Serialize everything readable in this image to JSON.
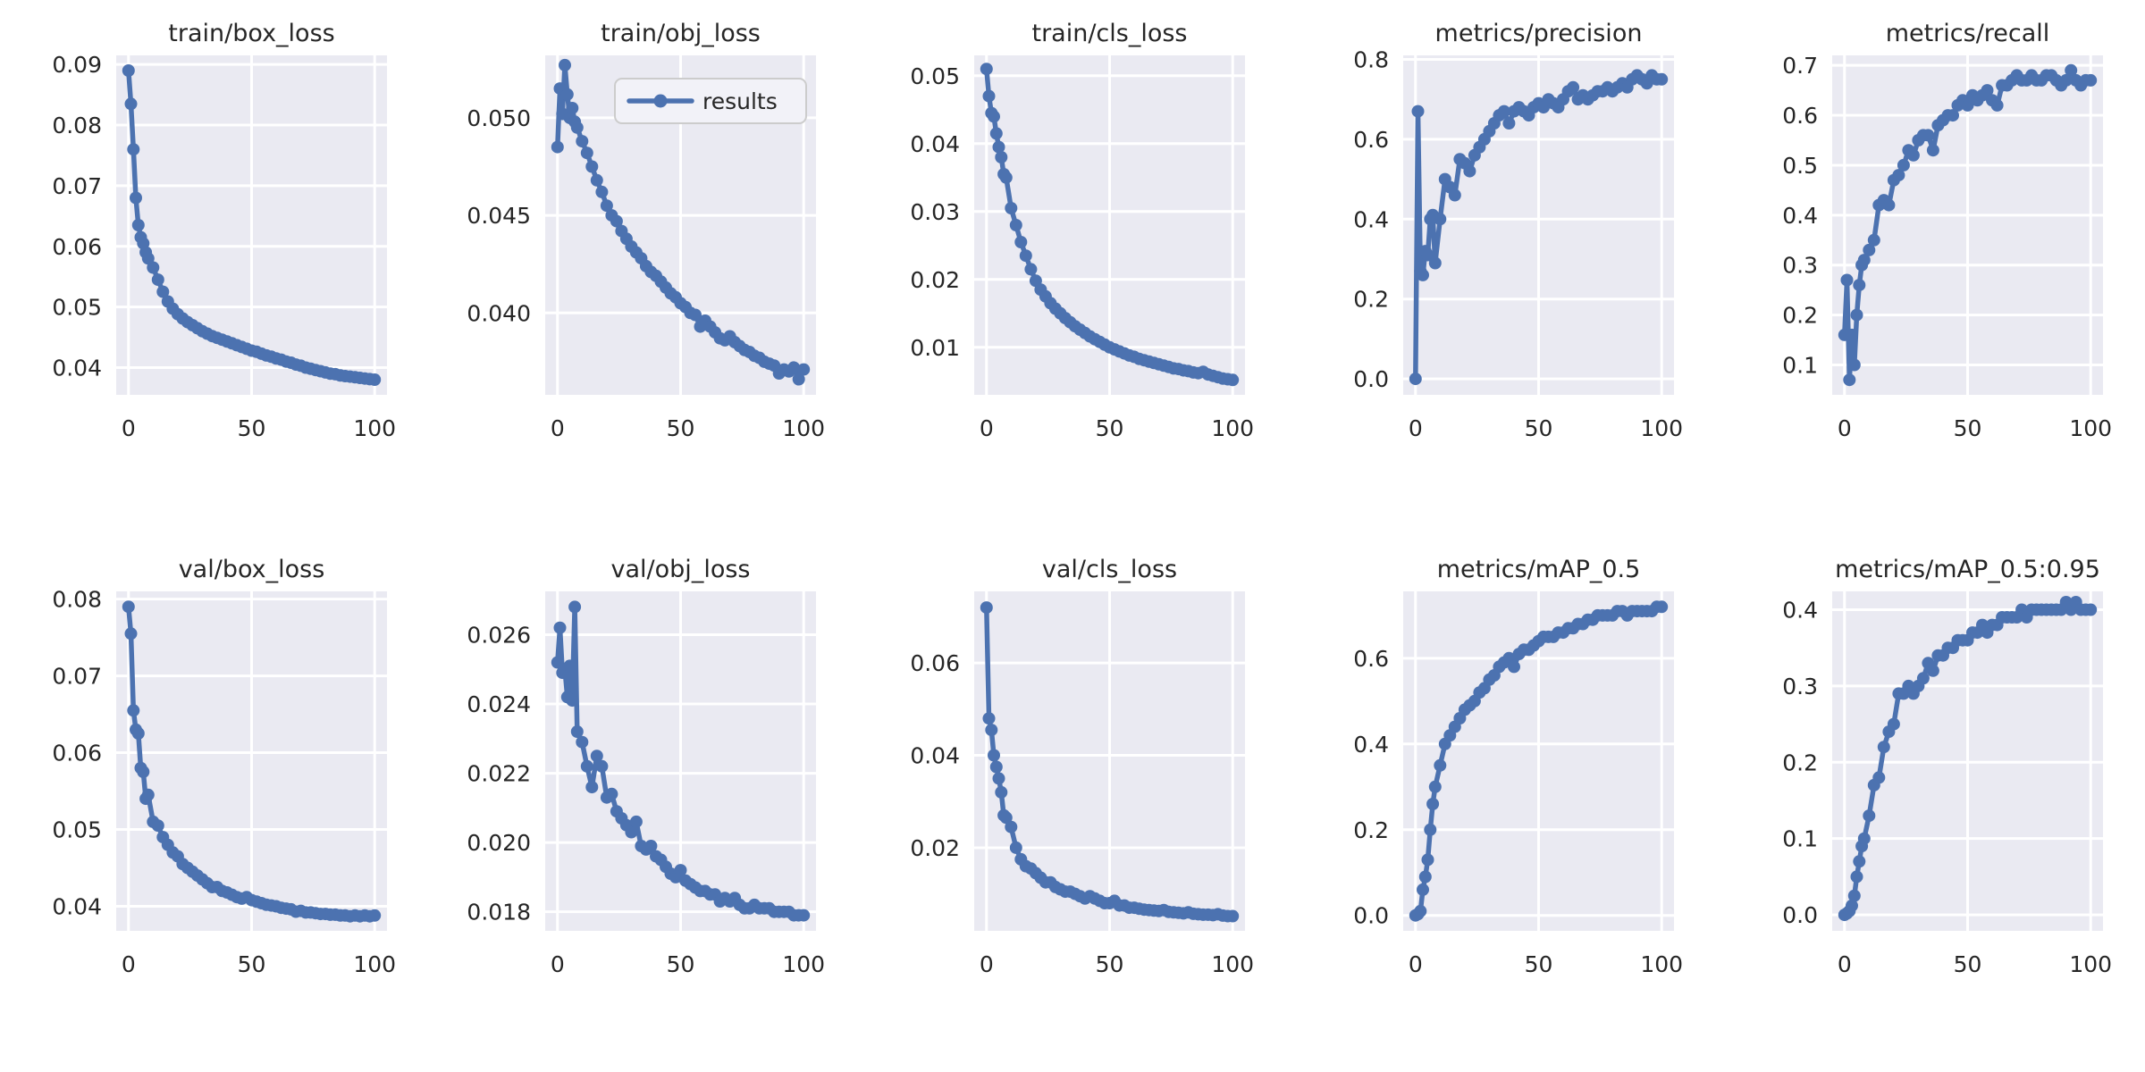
{
  "figure": {
    "background": "#ffffff",
    "axes_background": "#eaeaf2",
    "grid_color": "#ffffff",
    "line_color": "#4c72b0",
    "text_color": "#262626",
    "legend": {
      "label": "results",
      "face": "#f2f2f8",
      "edge": "#cccccc"
    }
  },
  "chart_data": [
    {
      "type": "line",
      "title": "train/box_loss",
      "series_name": "results",
      "grid": true,
      "show_legend": false,
      "xlim": [
        -5,
        105
      ],
      "ylim": [
        0.0355,
        0.0915
      ],
      "xticks": [
        "0",
        "50",
        "100"
      ],
      "yticks": [
        "0.04",
        "0.05",
        "0.06",
        "0.07",
        "0.08",
        "0.09"
      ],
      "x": [
        0,
        1,
        2,
        3,
        4,
        5,
        6,
        7,
        8,
        10,
        12,
        14,
        16,
        18,
        20,
        22,
        24,
        26,
        28,
        30,
        32,
        34,
        36,
        38,
        40,
        42,
        44,
        46,
        48,
        50,
        52,
        54,
        56,
        58,
        60,
        62,
        64,
        66,
        68,
        70,
        72,
        74,
        76,
        78,
        80,
        82,
        84,
        86,
        88,
        90,
        92,
        94,
        96,
        98,
        100
      ],
      "y": [
        0.089,
        0.0835,
        0.076,
        0.068,
        0.0635,
        0.0615,
        0.0605,
        0.059,
        0.058,
        0.0565,
        0.0545,
        0.0525,
        0.0509,
        0.0497,
        0.0488,
        0.0481,
        0.0475,
        0.047,
        0.0465,
        0.046,
        0.0456,
        0.0452,
        0.0449,
        0.0446,
        0.0443,
        0.044,
        0.0437,
        0.0434,
        0.0431,
        0.0428,
        0.0426,
        0.0423,
        0.042,
        0.0418,
        0.0415,
        0.0413,
        0.041,
        0.0408,
        0.0405,
        0.0403,
        0.04,
        0.0398,
        0.0396,
        0.0394,
        0.0392,
        0.039,
        0.0389,
        0.0387,
        0.0386,
        0.0385,
        0.0384,
        0.0383,
        0.0382,
        0.0381,
        0.038
      ]
    },
    {
      "type": "line",
      "title": "train/obj_loss",
      "series_name": "results",
      "grid": true,
      "show_legend": true,
      "xlim": [
        -5,
        105
      ],
      "ylim": [
        0.0358,
        0.0532
      ],
      "xticks": [
        "0",
        "50",
        "100"
      ],
      "yticks": [
        "0.040",
        "0.045",
        "0.050"
      ],
      "x": [
        0,
        1,
        2,
        3,
        4,
        5,
        6,
        7,
        8,
        10,
        12,
        14,
        16,
        18,
        20,
        22,
        24,
        26,
        28,
        30,
        32,
        34,
        36,
        38,
        40,
        42,
        44,
        46,
        48,
        50,
        52,
        54,
        56,
        58,
        60,
        62,
        64,
        66,
        68,
        70,
        72,
        74,
        76,
        78,
        80,
        82,
        84,
        86,
        88,
        90,
        92,
        94,
        96,
        98,
        100
      ],
      "y": [
        0.0485,
        0.0515,
        0.0502,
        0.0527,
        0.0512,
        0.05,
        0.0505,
        0.0498,
        0.0495,
        0.0488,
        0.0482,
        0.0475,
        0.0468,
        0.0462,
        0.0455,
        0.045,
        0.0447,
        0.0442,
        0.0438,
        0.0434,
        0.0431,
        0.0428,
        0.0424,
        0.0421,
        0.0419,
        0.0416,
        0.0413,
        0.041,
        0.0408,
        0.0405,
        0.0403,
        0.04,
        0.0399,
        0.0393,
        0.0396,
        0.0393,
        0.039,
        0.0387,
        0.0386,
        0.0388,
        0.0385,
        0.0383,
        0.0381,
        0.038,
        0.0378,
        0.0377,
        0.0375,
        0.0374,
        0.0373,
        0.0369,
        0.0371,
        0.037,
        0.0372,
        0.0366,
        0.0371
      ]
    },
    {
      "type": "line",
      "title": "train/cls_loss",
      "series_name": "results",
      "grid": true,
      "show_legend": false,
      "xlim": [
        -5,
        105
      ],
      "ylim": [
        0.003,
        0.053
      ],
      "xticks": [
        "0",
        "50",
        "100"
      ],
      "yticks": [
        "0.01",
        "0.02",
        "0.03",
        "0.04",
        "0.05"
      ],
      "x": [
        0,
        1,
        2,
        3,
        4,
        5,
        6,
        7,
        8,
        10,
        12,
        14,
        16,
        18,
        20,
        22,
        24,
        26,
        28,
        30,
        32,
        34,
        36,
        38,
        40,
        42,
        44,
        46,
        48,
        50,
        52,
        54,
        56,
        58,
        60,
        62,
        64,
        66,
        68,
        70,
        72,
        74,
        76,
        78,
        80,
        82,
        84,
        86,
        88,
        90,
        92,
        94,
        96,
        98,
        100
      ],
      "y": [
        0.051,
        0.047,
        0.0445,
        0.044,
        0.0415,
        0.0395,
        0.038,
        0.0355,
        0.035,
        0.0305,
        0.028,
        0.0255,
        0.0235,
        0.0215,
        0.0198,
        0.0185,
        0.0175,
        0.0165,
        0.0157,
        0.015,
        0.0143,
        0.0137,
        0.0131,
        0.0126,
        0.0121,
        0.0116,
        0.0112,
        0.0108,
        0.0104,
        0.01,
        0.0097,
        0.0094,
        0.0091,
        0.0088,
        0.0086,
        0.0083,
        0.0081,
        0.0079,
        0.0077,
        0.0075,
        0.0073,
        0.0071,
        0.0069,
        0.0068,
        0.0066,
        0.0065,
        0.0063,
        0.0062,
        0.0064,
        0.006,
        0.0058,
        0.0056,
        0.0054,
        0.0053,
        0.0052
      ]
    },
    {
      "type": "line",
      "title": "metrics/precision",
      "series_name": "results",
      "grid": true,
      "show_legend": false,
      "xlim": [
        -5,
        105
      ],
      "ylim": [
        -0.04,
        0.81
      ],
      "xticks": [
        "0",
        "50",
        "100"
      ],
      "yticks": [
        "0.0",
        "0.2",
        "0.4",
        "0.6",
        "0.8"
      ],
      "x": [
        0,
        1,
        2,
        3,
        4,
        5,
        6,
        7,
        8,
        10,
        12,
        14,
        16,
        18,
        20,
        22,
        24,
        26,
        28,
        30,
        32,
        34,
        36,
        38,
        40,
        42,
        44,
        46,
        48,
        50,
        52,
        54,
        56,
        58,
        60,
        62,
        64,
        66,
        68,
        70,
        72,
        74,
        76,
        78,
        80,
        82,
        84,
        86,
        88,
        90,
        92,
        94,
        96,
        98,
        100
      ],
      "y": [
        0.0,
        0.67,
        0.27,
        0.26,
        0.32,
        0.31,
        0.4,
        0.41,
        0.29,
        0.4,
        0.5,
        0.48,
        0.46,
        0.55,
        0.54,
        0.52,
        0.56,
        0.58,
        0.6,
        0.62,
        0.64,
        0.66,
        0.67,
        0.64,
        0.67,
        0.68,
        0.67,
        0.66,
        0.68,
        0.69,
        0.68,
        0.7,
        0.69,
        0.68,
        0.7,
        0.72,
        0.73,
        0.7,
        0.71,
        0.7,
        0.71,
        0.72,
        0.72,
        0.73,
        0.72,
        0.73,
        0.74,
        0.73,
        0.75,
        0.76,
        0.75,
        0.74,
        0.76,
        0.75,
        0.75
      ]
    },
    {
      "type": "line",
      "title": "metrics/recall",
      "series_name": "results",
      "grid": true,
      "show_legend": false,
      "xlim": [
        -5,
        105
      ],
      "ylim": [
        0.04,
        0.72
      ],
      "xticks": [
        "0",
        "50",
        "100"
      ],
      "yticks": [
        "0.1",
        "0.2",
        "0.3",
        "0.4",
        "0.5",
        "0.6",
        "0.7"
      ],
      "x": [
        0,
        1,
        2,
        3,
        4,
        5,
        6,
        7,
        8,
        10,
        12,
        14,
        16,
        18,
        20,
        22,
        24,
        26,
        28,
        30,
        32,
        34,
        36,
        38,
        40,
        42,
        44,
        46,
        48,
        50,
        52,
        54,
        56,
        58,
        60,
        62,
        64,
        66,
        68,
        70,
        72,
        74,
        76,
        78,
        80,
        82,
        84,
        86,
        88,
        90,
        92,
        94,
        96,
        98,
        100
      ],
      "y": [
        0.16,
        0.27,
        0.07,
        0.16,
        0.1,
        0.2,
        0.26,
        0.3,
        0.31,
        0.33,
        0.35,
        0.42,
        0.43,
        0.42,
        0.47,
        0.48,
        0.5,
        0.53,
        0.52,
        0.55,
        0.56,
        0.56,
        0.53,
        0.58,
        0.59,
        0.6,
        0.6,
        0.62,
        0.63,
        0.62,
        0.64,
        0.63,
        0.64,
        0.65,
        0.63,
        0.62,
        0.66,
        0.66,
        0.67,
        0.68,
        0.67,
        0.67,
        0.68,
        0.67,
        0.67,
        0.68,
        0.68,
        0.67,
        0.66,
        0.67,
        0.69,
        0.67,
        0.66,
        0.67,
        0.67
      ]
    },
    {
      "type": "line",
      "title": "val/box_loss",
      "series_name": "results",
      "grid": true,
      "show_legend": false,
      "xlim": [
        -5,
        105
      ],
      "ylim": [
        0.0368,
        0.081
      ],
      "xticks": [
        "0",
        "50",
        "100"
      ],
      "yticks": [
        "0.04",
        "0.05",
        "0.06",
        "0.07",
        "0.08"
      ],
      "x": [
        0,
        1,
        2,
        3,
        4,
        5,
        6,
        7,
        8,
        10,
        12,
        14,
        16,
        18,
        20,
        22,
        24,
        26,
        28,
        30,
        32,
        34,
        36,
        38,
        40,
        42,
        44,
        46,
        48,
        50,
        52,
        54,
        56,
        58,
        60,
        62,
        64,
        66,
        68,
        70,
        72,
        74,
        76,
        78,
        80,
        82,
        84,
        86,
        88,
        90,
        92,
        94,
        96,
        98,
        100
      ],
      "y": [
        0.079,
        0.0755,
        0.0655,
        0.063,
        0.0625,
        0.058,
        0.0575,
        0.054,
        0.0545,
        0.051,
        0.0505,
        0.049,
        0.048,
        0.047,
        0.0465,
        0.0455,
        0.045,
        0.0445,
        0.044,
        0.0435,
        0.043,
        0.0425,
        0.0425,
        0.042,
        0.0418,
        0.0415,
        0.0412,
        0.041,
        0.0412,
        0.0408,
        0.0406,
        0.0404,
        0.0402,
        0.0401,
        0.04,
        0.0398,
        0.0397,
        0.0396,
        0.0393,
        0.0394,
        0.0392,
        0.0392,
        0.0391,
        0.039,
        0.039,
        0.0389,
        0.0389,
        0.0388,
        0.0388,
        0.0387,
        0.0388,
        0.0387,
        0.0388,
        0.0387,
        0.0388
      ]
    },
    {
      "type": "line",
      "title": "val/obj_loss",
      "series_name": "results",
      "grid": true,
      "show_legend": false,
      "xlim": [
        -5,
        105
      ],
      "ylim": [
        0.01745,
        0.02725
      ],
      "xticks": [
        "0",
        "50",
        "100"
      ],
      "yticks": [
        "0.018",
        "0.020",
        "0.022",
        "0.024",
        "0.026"
      ],
      "x": [
        0,
        1,
        2,
        3,
        4,
        5,
        6,
        7,
        8,
        10,
        12,
        14,
        16,
        18,
        20,
        22,
        24,
        26,
        28,
        30,
        32,
        34,
        36,
        38,
        40,
        42,
        44,
        46,
        48,
        50,
        52,
        54,
        56,
        58,
        60,
        62,
        64,
        66,
        68,
        70,
        72,
        74,
        76,
        78,
        80,
        82,
        84,
        86,
        88,
        90,
        92,
        94,
        96,
        98,
        100
      ],
      "y": [
        0.0252,
        0.0262,
        0.0249,
        0.025,
        0.0242,
        0.0251,
        0.0241,
        0.0268,
        0.0232,
        0.0229,
        0.0222,
        0.0216,
        0.0225,
        0.0222,
        0.0213,
        0.0214,
        0.0209,
        0.0207,
        0.0205,
        0.0203,
        0.0206,
        0.0199,
        0.0198,
        0.0199,
        0.0196,
        0.0195,
        0.0193,
        0.0191,
        0.019,
        0.0192,
        0.0189,
        0.0188,
        0.0187,
        0.0186,
        0.0186,
        0.0185,
        0.0185,
        0.0183,
        0.0184,
        0.0183,
        0.0184,
        0.0182,
        0.0181,
        0.0181,
        0.0182,
        0.0181,
        0.0181,
        0.0181,
        0.018,
        0.018,
        0.018,
        0.018,
        0.0179,
        0.0179,
        0.0179
      ]
    },
    {
      "type": "line",
      "title": "val/cls_loss",
      "series_name": "results",
      "grid": true,
      "show_legend": false,
      "xlim": [
        -5,
        105
      ],
      "ylim": [
        0.002,
        0.0755
      ],
      "xticks": [
        "0",
        "50",
        "100"
      ],
      "yticks": [
        "0.02",
        "0.04",
        "0.06"
      ],
      "x": [
        0,
        1,
        2,
        3,
        4,
        5,
        6,
        7,
        8,
        10,
        12,
        14,
        16,
        18,
        20,
        22,
        24,
        26,
        28,
        30,
        32,
        34,
        36,
        38,
        40,
        42,
        44,
        46,
        48,
        50,
        52,
        54,
        56,
        58,
        60,
        62,
        64,
        66,
        68,
        70,
        72,
        74,
        76,
        78,
        80,
        82,
        84,
        86,
        88,
        90,
        92,
        94,
        96,
        98,
        100
      ],
      "y": [
        0.072,
        0.048,
        0.0455,
        0.04,
        0.0375,
        0.035,
        0.032,
        0.027,
        0.0265,
        0.0245,
        0.02,
        0.0175,
        0.016,
        0.0155,
        0.0145,
        0.0135,
        0.0125,
        0.0125,
        0.0115,
        0.011,
        0.0105,
        0.0105,
        0.01,
        0.0095,
        0.009,
        0.0095,
        0.009,
        0.0085,
        0.008,
        0.008,
        0.0085,
        0.0075,
        0.0075,
        0.007,
        0.007,
        0.0068,
        0.0066,
        0.0065,
        0.0064,
        0.0063,
        0.0065,
        0.0061,
        0.006,
        0.0059,
        0.0058,
        0.006,
        0.0057,
        0.0056,
        0.0055,
        0.0055,
        0.0054,
        0.0056,
        0.0053,
        0.0052,
        0.0052
      ]
    },
    {
      "type": "line",
      "title": "metrics/mAP_0.5",
      "series_name": "results",
      "grid": true,
      "show_legend": false,
      "xlim": [
        -5,
        105
      ],
      "ylim": [
        -0.036,
        0.756
      ],
      "xticks": [
        "0",
        "50",
        "100"
      ],
      "yticks": [
        "0.0",
        "0.2",
        "0.4",
        "0.6"
      ],
      "x": [
        0,
        1,
        2,
        3,
        4,
        5,
        6,
        7,
        8,
        10,
        12,
        14,
        16,
        18,
        20,
        22,
        24,
        26,
        28,
        30,
        32,
        34,
        36,
        38,
        40,
        42,
        44,
        46,
        48,
        50,
        52,
        54,
        56,
        58,
        60,
        62,
        64,
        66,
        68,
        70,
        72,
        74,
        76,
        78,
        80,
        82,
        84,
        86,
        88,
        90,
        92,
        94,
        96,
        98,
        100
      ],
      "y": [
        0.0,
        0.003,
        0.01,
        0.06,
        0.09,
        0.13,
        0.2,
        0.26,
        0.3,
        0.35,
        0.4,
        0.42,
        0.44,
        0.46,
        0.48,
        0.49,
        0.5,
        0.52,
        0.53,
        0.55,
        0.56,
        0.58,
        0.59,
        0.6,
        0.58,
        0.61,
        0.62,
        0.62,
        0.63,
        0.64,
        0.65,
        0.65,
        0.65,
        0.66,
        0.66,
        0.67,
        0.67,
        0.68,
        0.68,
        0.69,
        0.69,
        0.7,
        0.7,
        0.7,
        0.7,
        0.71,
        0.71,
        0.7,
        0.71,
        0.71,
        0.71,
        0.71,
        0.71,
        0.72,
        0.72
      ]
    },
    {
      "type": "line",
      "title": "metrics/mAP_0.5:0.95",
      "series_name": "results",
      "grid": true,
      "show_legend": false,
      "xlim": [
        -5,
        105
      ],
      "ylim": [
        -0.021,
        0.424
      ],
      "xticks": [
        "0",
        "50",
        "100"
      ],
      "yticks": [
        "0.0",
        "0.1",
        "0.2",
        "0.3",
        "0.4"
      ],
      "x": [
        0,
        1,
        2,
        3,
        4,
        5,
        6,
        7,
        8,
        10,
        12,
        14,
        16,
        18,
        20,
        22,
        24,
        26,
        28,
        30,
        32,
        34,
        36,
        38,
        40,
        42,
        44,
        46,
        48,
        50,
        52,
        54,
        56,
        58,
        60,
        62,
        64,
        66,
        68,
        70,
        72,
        74,
        76,
        78,
        80,
        82,
        84,
        86,
        88,
        90,
        92,
        94,
        96,
        98,
        100
      ],
      "y": [
        0.0,
        0.002,
        0.005,
        0.012,
        0.025,
        0.05,
        0.07,
        0.09,
        0.1,
        0.13,
        0.17,
        0.18,
        0.22,
        0.24,
        0.25,
        0.29,
        0.29,
        0.3,
        0.29,
        0.3,
        0.31,
        0.33,
        0.32,
        0.34,
        0.34,
        0.35,
        0.35,
        0.36,
        0.36,
        0.36,
        0.37,
        0.37,
        0.38,
        0.37,
        0.38,
        0.38,
        0.39,
        0.39,
        0.39,
        0.39,
        0.4,
        0.39,
        0.4,
        0.4,
        0.4,
        0.4,
        0.4,
        0.4,
        0.4,
        0.41,
        0.4,
        0.41,
        0.4,
        0.4,
        0.4
      ]
    }
  ]
}
